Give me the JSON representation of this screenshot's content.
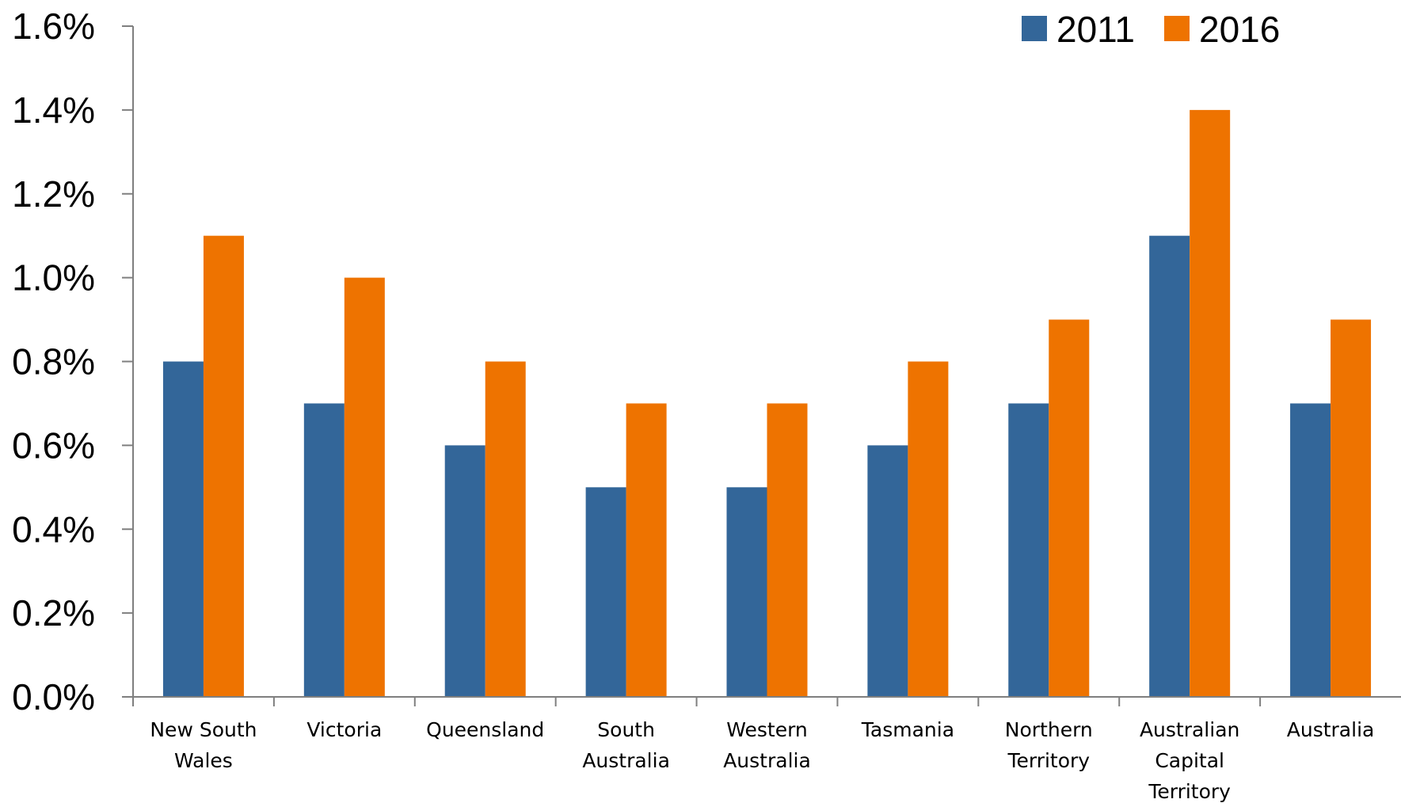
{
  "chart_data": {
    "type": "bar",
    "title": "",
    "xlabel": "",
    "ylabel": "",
    "ylim": [
      0,
      1.6
    ],
    "yticks": [
      "0.0%",
      "0.2%",
      "0.4%",
      "0.6%",
      "0.8%",
      "1.0%",
      "1.2%",
      "1.4%",
      "1.6%"
    ],
    "grid": false,
    "legend_position": "top-right",
    "categories": [
      [
        "New South",
        "Wales"
      ],
      [
        "Victoria"
      ],
      [
        "Queensland"
      ],
      [
        "South",
        "Australia"
      ],
      [
        "Western",
        "Australia"
      ],
      [
        "Tasmania"
      ],
      [
        "Northern",
        "Territory"
      ],
      [
        "Australian",
        "Capital",
        "Territory"
      ],
      [
        "Australia"
      ]
    ],
    "series": [
      {
        "name": "2011",
        "color": "#336699",
        "values": [
          0.8,
          0.7,
          0.6,
          0.5,
          0.5,
          0.6,
          0.7,
          1.1,
          0.7
        ]
      },
      {
        "name": "2016",
        "color": "#EE7300",
        "values": [
          1.1,
          1.0,
          0.8,
          0.7,
          0.7,
          0.8,
          0.9,
          1.4,
          0.9
        ]
      }
    ]
  }
}
